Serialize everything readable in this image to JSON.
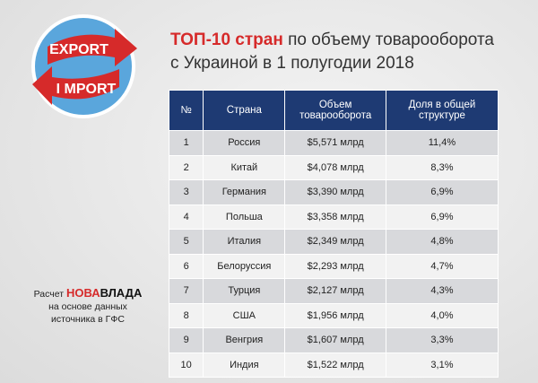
{
  "logo": {
    "top": "EXPORT",
    "bottom": "I MPORT"
  },
  "header": {
    "title_accent": "ТОП-10 стран",
    "title_rest": "по объему товарооборота",
    "title_line2": "с Украиной в 1 полугодии 2018"
  },
  "source": {
    "prefix": "Расчет",
    "brand_a": "НОВА",
    "brand_b": "ВЛАДА",
    "line2": "на основе данных",
    "line3": "источника в ГФС"
  },
  "table": {
    "columns": [
      "№",
      "Страна",
      "Объем товарооборота",
      "Доля в общей структуре"
    ],
    "rows": [
      [
        "1",
        "Россия",
        "$5,571 млрд",
        "11,4%"
      ],
      [
        "2",
        "Китай",
        "$4,078 млрд",
        "8,3%"
      ],
      [
        "3",
        "Германия",
        "$3,390 млрд",
        "6,9%"
      ],
      [
        "4",
        "Польша",
        "$3,358 млрд",
        "6,9%"
      ],
      [
        "5",
        "Италия",
        "$2,349 млрд",
        "4,8%"
      ],
      [
        "6",
        "Белоруссия",
        "$2,293 млрд",
        "4,7%"
      ],
      [
        "7",
        "Турция",
        "$2,127 млрд",
        "4,3%"
      ],
      [
        "8",
        "США",
        "$1,956 млрд",
        "4,0%"
      ],
      [
        "9",
        "Венгрия",
        "$1,607 млрд",
        "3,3%"
      ],
      [
        "10",
        "Индия",
        "$1,522 млрд",
        "3,1%"
      ]
    ]
  }
}
